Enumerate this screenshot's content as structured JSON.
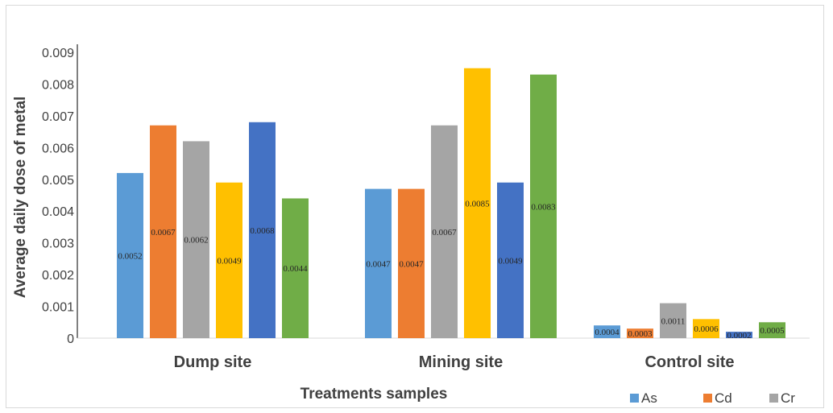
{
  "chart_data": {
    "type": "bar",
    "title": "",
    "xlabel": "Treatments samples",
    "ylabel": "Average daily dose of metal",
    "ylim": [
      0,
      0.009
    ],
    "yticks": [
      "0",
      "0.001",
      "0.002",
      "0.003",
      "0.004",
      "0.005",
      "0.006",
      "0.007",
      "0.008",
      "0.009"
    ],
    "categories": [
      "Dump site",
      "Mining site",
      "Control site"
    ],
    "series": [
      {
        "name": "As",
        "color": "#5B9BD5",
        "values": [
          0.0052,
          0.0047,
          0.0004
        ],
        "labels": [
          "0.0052",
          "0.0047",
          "0.0004"
        ]
      },
      {
        "name": "Cd",
        "color": "#ED7D31",
        "values": [
          0.0067,
          0.0047,
          0.0003
        ],
        "labels": [
          "0.0067",
          "0.0047",
          "0.0003"
        ]
      },
      {
        "name": "Cr",
        "color": "#A5A5A5",
        "values": [
          0.0062,
          0.0067,
          0.0011
        ],
        "labels": [
          "0.0062",
          "0.0067",
          "0.0011"
        ]
      },
      {
        "name": "",
        "color": "#FFC000",
        "values": [
          0.0049,
          0.0085,
          0.0006
        ],
        "labels": [
          "0.0049",
          "0.0085",
          "0.0006"
        ]
      },
      {
        "name": "",
        "color": "#4472C4",
        "values": [
          0.0068,
          0.0049,
          0.0002
        ],
        "labels": [
          "0.0068",
          "0.0049",
          "0.0002"
        ]
      },
      {
        "name": "",
        "color": "#70AD47",
        "values": [
          0.0044,
          0.0083,
          0.0005
        ],
        "labels": [
          "0.0044",
          "0.0083",
          "0.0005"
        ]
      }
    ],
    "legend_position": "bottom-right",
    "grid": false
  }
}
